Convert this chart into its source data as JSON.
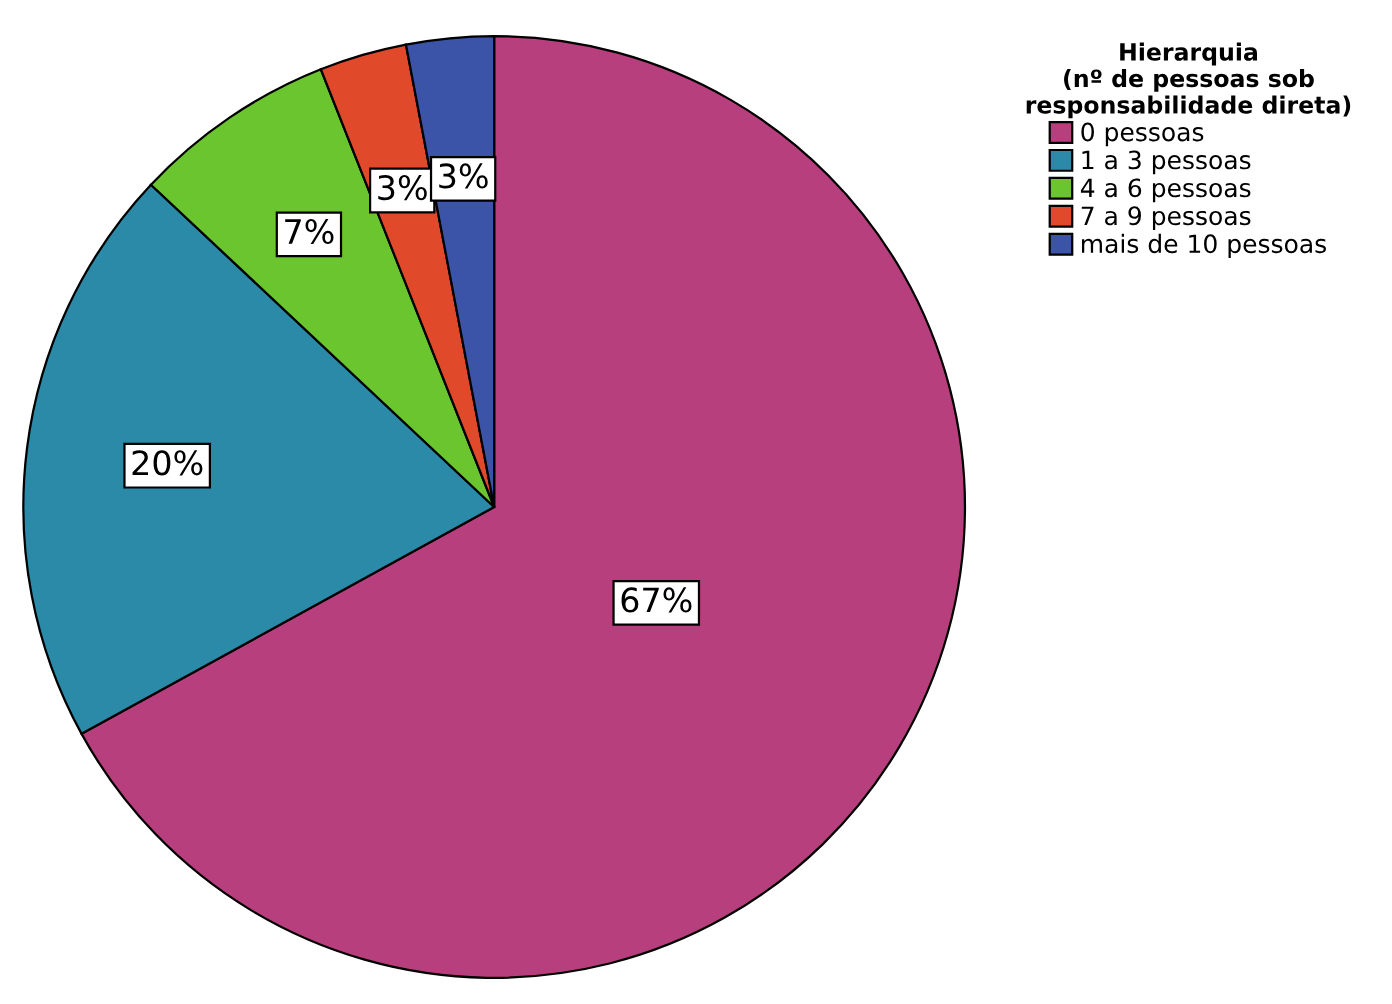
{
  "chart_data": {
    "type": "pie",
    "legend_title": "Hierarquia\n(nº de pessoas sob\nresponsabilidade direta)",
    "categories": [
      "0 pessoas",
      "1 a 3 pessoas",
      "4 a 6 pessoas",
      "7 a 9 pessoas",
      "mais de 10 pessoas"
    ],
    "values": [
      67,
      20,
      7,
      3,
      3
    ],
    "colors": [
      "#b83f7e",
      "#2a8aa8",
      "#6bc52f",
      "#e04a2a",
      "#3b54a8"
    ],
    "value_labels": [
      "67%",
      "20%",
      "7%",
      "3%",
      "3%"
    ],
    "legend": "top right"
  }
}
